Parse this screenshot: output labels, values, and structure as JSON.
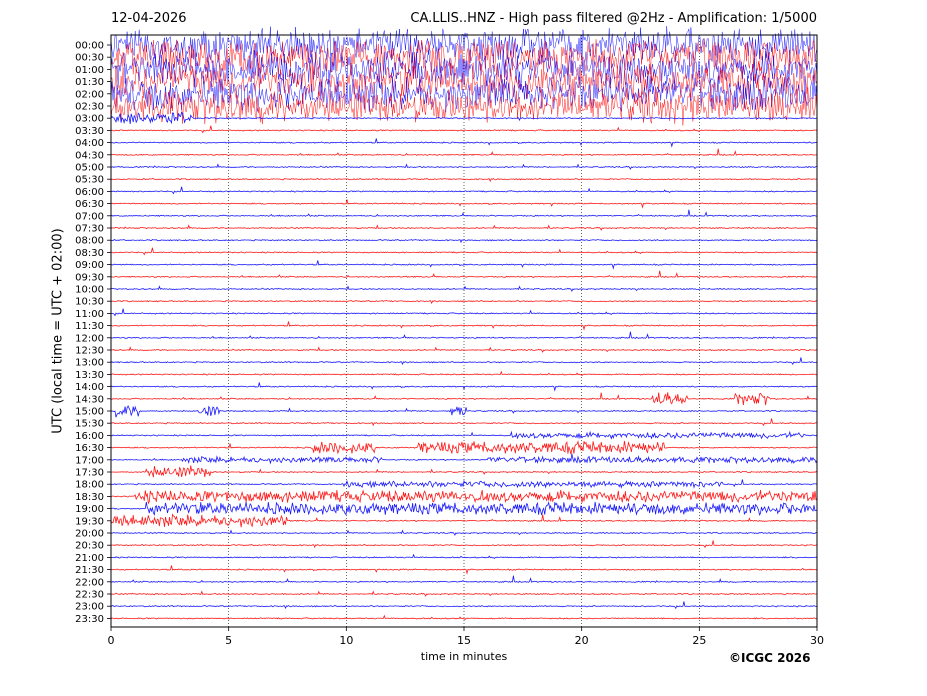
{
  "header": {
    "date": "12-04-2026",
    "title": "CA.LLIS..HNZ - High pass filtered @2Hz - Amplification: 1/5000"
  },
  "footer": {
    "copyright": "©ICGC 2026"
  },
  "colors": {
    "trace_a": "#ff0000",
    "trace_b": "#0000ff",
    "axis": "#000000",
    "grid": "#000000"
  },
  "chart_data": {
    "type": "line",
    "title": "CA.LLIS..HNZ - High pass filtered @2Hz - Amplification: 1/5000",
    "xlabel": "time in minutes",
    "ylabel": "UTC (local time = UTC + 02:00)",
    "xlim": [
      0,
      30
    ],
    "xticks": [
      "0",
      "5",
      "10",
      "15",
      "20",
      "25",
      "30"
    ],
    "vertical_grid_minutes": [
      5,
      10,
      15,
      20,
      25
    ],
    "grid": "dotted vertical",
    "rows": [
      "00:00",
      "00:30",
      "01:00",
      "01:30",
      "02:00",
      "02:30",
      "03:00",
      "03:30",
      "04:00",
      "04:30",
      "05:00",
      "05:30",
      "06:00",
      "06:30",
      "07:00",
      "07:30",
      "08:00",
      "08:30",
      "09:00",
      "09:30",
      "10:00",
      "10:30",
      "11:00",
      "11:30",
      "12:00",
      "12:30",
      "13:00",
      "13:30",
      "14:00",
      "14:30",
      "15:00",
      "15:30",
      "16:00",
      "16:30",
      "17:00",
      "17:30",
      "18:00",
      "18:30",
      "19:00",
      "19:30",
      "20:00",
      "20:30",
      "21:00",
      "21:30",
      "22:00",
      "22:30",
      "23:00",
      "23:30"
    ],
    "row_colors": "blue/red alternating, starting blue at 00:00",
    "activity": {
      "very_high": [
        "00:00",
        "00:30",
        "01:00",
        "01:30",
        "02:00",
        "02:30"
      ],
      "high_partial": [
        {
          "row": "03:00",
          "x": [
            0,
            3.5
          ]
        },
        {
          "row": "14:30",
          "x": [
            23,
            24.5
          ]
        },
        {
          "row": "14:30",
          "x": [
            26.5,
            28
          ]
        },
        {
          "row": "15:00",
          "x": [
            0.2,
            1.3
          ]
        },
        {
          "row": "15:00",
          "x": [
            3.7,
            4.6
          ]
        },
        {
          "row": "15:00",
          "x": [
            14.4,
            15.1
          ]
        },
        {
          "row": "16:30",
          "x": [
            8.5,
            11.2
          ]
        },
        {
          "row": "16:30",
          "x": [
            13,
            23.5
          ]
        },
        {
          "row": "17:30",
          "x": [
            1.5,
            4.2
          ]
        },
        {
          "row": "18:30",
          "x": [
            1,
            30
          ]
        },
        {
          "row": "19:00",
          "x": [
            1.5,
            30
          ]
        },
        {
          "row": "19:30",
          "x": [
            0,
            7.5
          ]
        }
      ],
      "medium_partial": [
        {
          "row": "16:00",
          "x": [
            17,
            29.5
          ]
        },
        {
          "row": "17:00",
          "x": [
            3,
            11.5
          ]
        },
        {
          "row": "17:00",
          "x": [
            16,
            30
          ]
        },
        {
          "row": "18:00",
          "x": [
            10,
            26
          ]
        }
      ]
    }
  }
}
